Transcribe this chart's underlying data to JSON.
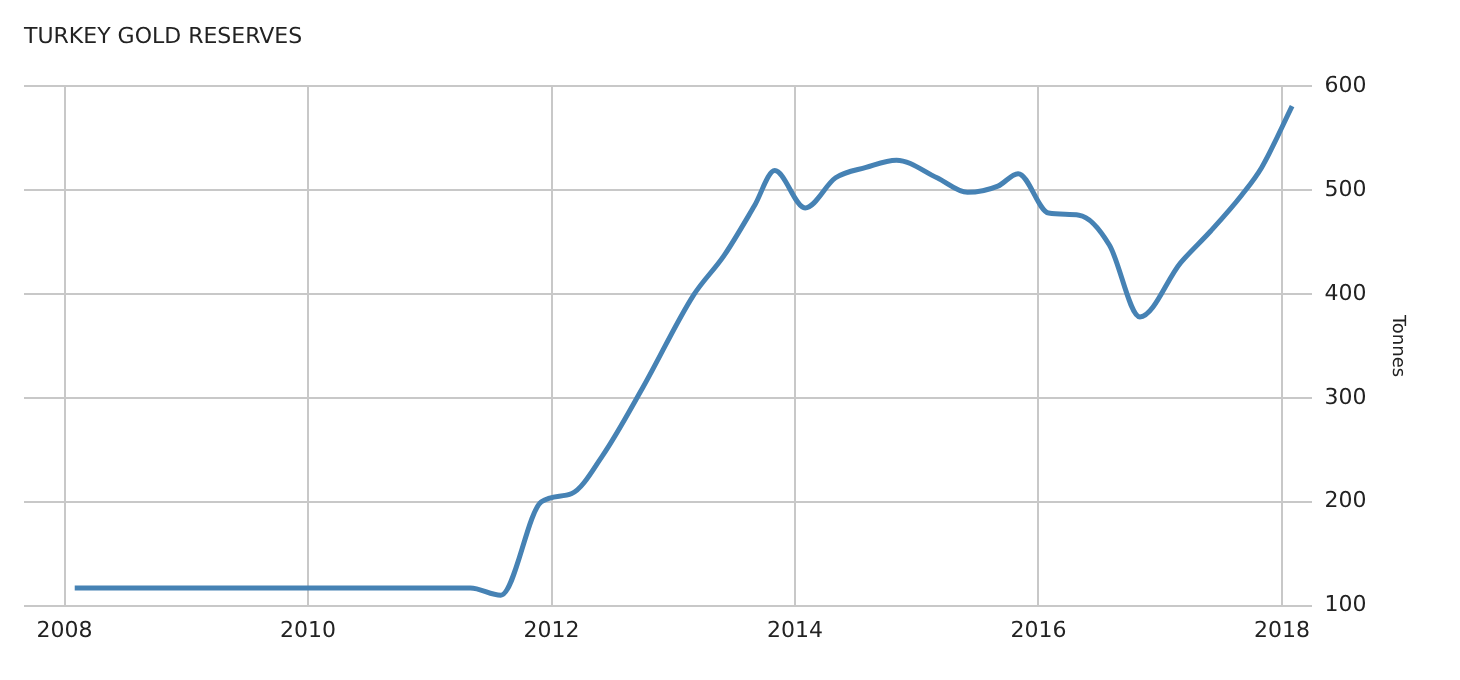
{
  "chart_data": {
    "type": "line",
    "title": "TURKEY GOLD RESERVES",
    "ylabel": "Tonnes",
    "x": [
      "2008-02",
      "2011-05",
      "2011-08",
      "2011-12",
      "2012-03",
      "2012-06",
      "2012-10",
      "2013-03",
      "2013-06",
      "2013-09",
      "2013-11",
      "2014-02",
      "2014-05",
      "2014-08",
      "2014-11",
      "2015-03",
      "2015-06",
      "2015-09",
      "2015-11",
      "2016-02",
      "2016-05",
      "2016-08",
      "2016-11",
      "2017-03",
      "2017-06",
      "2017-09",
      "2017-11",
      "2018-02"
    ],
    "series": [
      {
        "color": "#4682b4",
        "values": [
          117,
          117,
          110,
          200,
          208,
          244,
          310,
          399,
          437,
          485,
          519,
          483,
          512,
          522,
          529,
          512,
          498,
          504,
          516,
          478,
          476,
          447,
          378,
          430,
          461,
          495,
          522,
          581
        ]
      }
    ],
    "xlim": [
      "2007-09",
      "2018-04"
    ],
    "xticks": [
      "2008",
      "2010",
      "2012",
      "2014",
      "2016",
      "2018"
    ],
    "ylim": [
      100,
      600
    ],
    "yticks": [
      100,
      200,
      300,
      400,
      500,
      600
    ],
    "grid": true,
    "legend": false,
    "marker": "none",
    "line_style": "solid"
  }
}
